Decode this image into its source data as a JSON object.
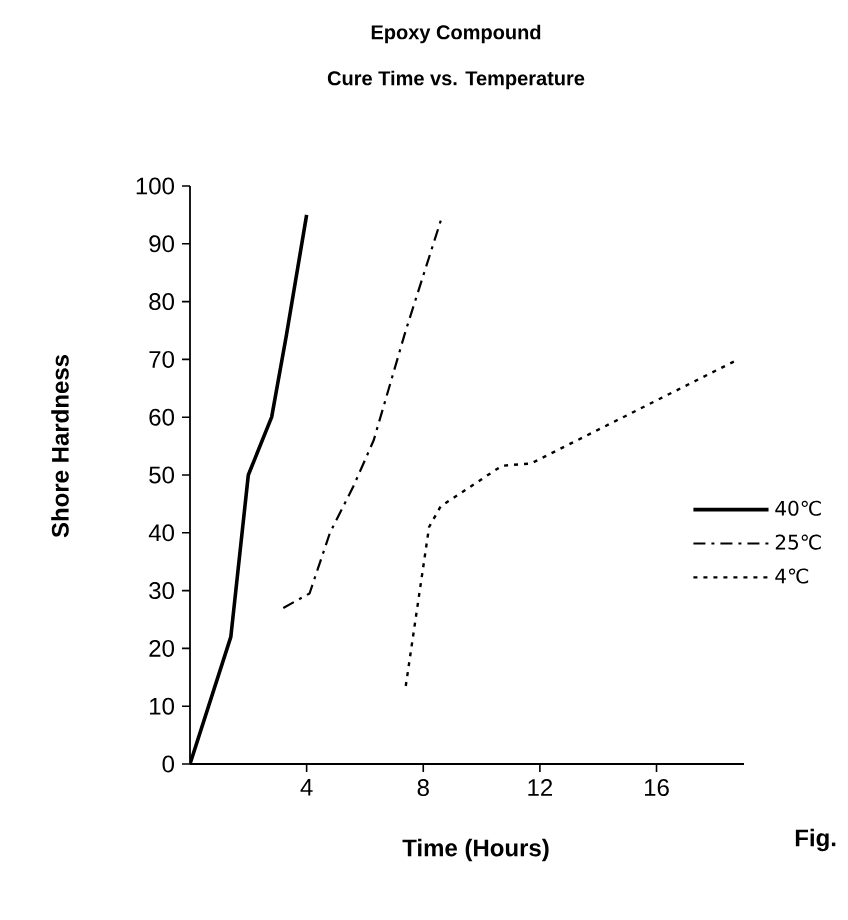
{
  "chart_data": {
    "type": "line",
    "title": "Epoxy Compound",
    "subtitle": "Cure Time vs. Temperature",
    "xlabel": "Time (Hours)",
    "ylabel": "Shore Hardness",
    "xlim": [
      0,
      19
    ],
    "xticks": [
      4,
      8,
      12,
      16
    ],
    "ylim": [
      0,
      100
    ],
    "yticks": [
      0,
      10,
      20,
      30,
      40,
      50,
      60,
      70,
      80,
      90,
      100
    ],
    "grid": false,
    "legend": "right",
    "marker": "none",
    "series": [
      {
        "name": "40℃",
        "color": "#000000",
        "line_style": "solid",
        "x": [
          0,
          1.4,
          2.0,
          2.8,
          3.3,
          4.0
        ],
        "values": [
          0,
          22,
          50,
          60,
          74,
          95
        ]
      },
      {
        "name": "25℃",
        "color": "#000000",
        "line_style": "dashed",
        "x": [
          3.2,
          4.1,
          4.8,
          5.6,
          6.3,
          7.4,
          8.6
        ],
        "values": [
          27,
          29.5,
          40,
          48,
          56,
          75,
          94
        ]
      },
      {
        "name": "4℃",
        "color": "#000000",
        "line_style": "dotted",
        "x": [
          7.4,
          8.2,
          8.6,
          10.7,
          11.7,
          18.8
        ],
        "values": [
          13.5,
          41,
          44.6,
          51.6,
          52,
          70
        ]
      }
    ],
    "annotations": [
      "Fig."
    ]
  }
}
